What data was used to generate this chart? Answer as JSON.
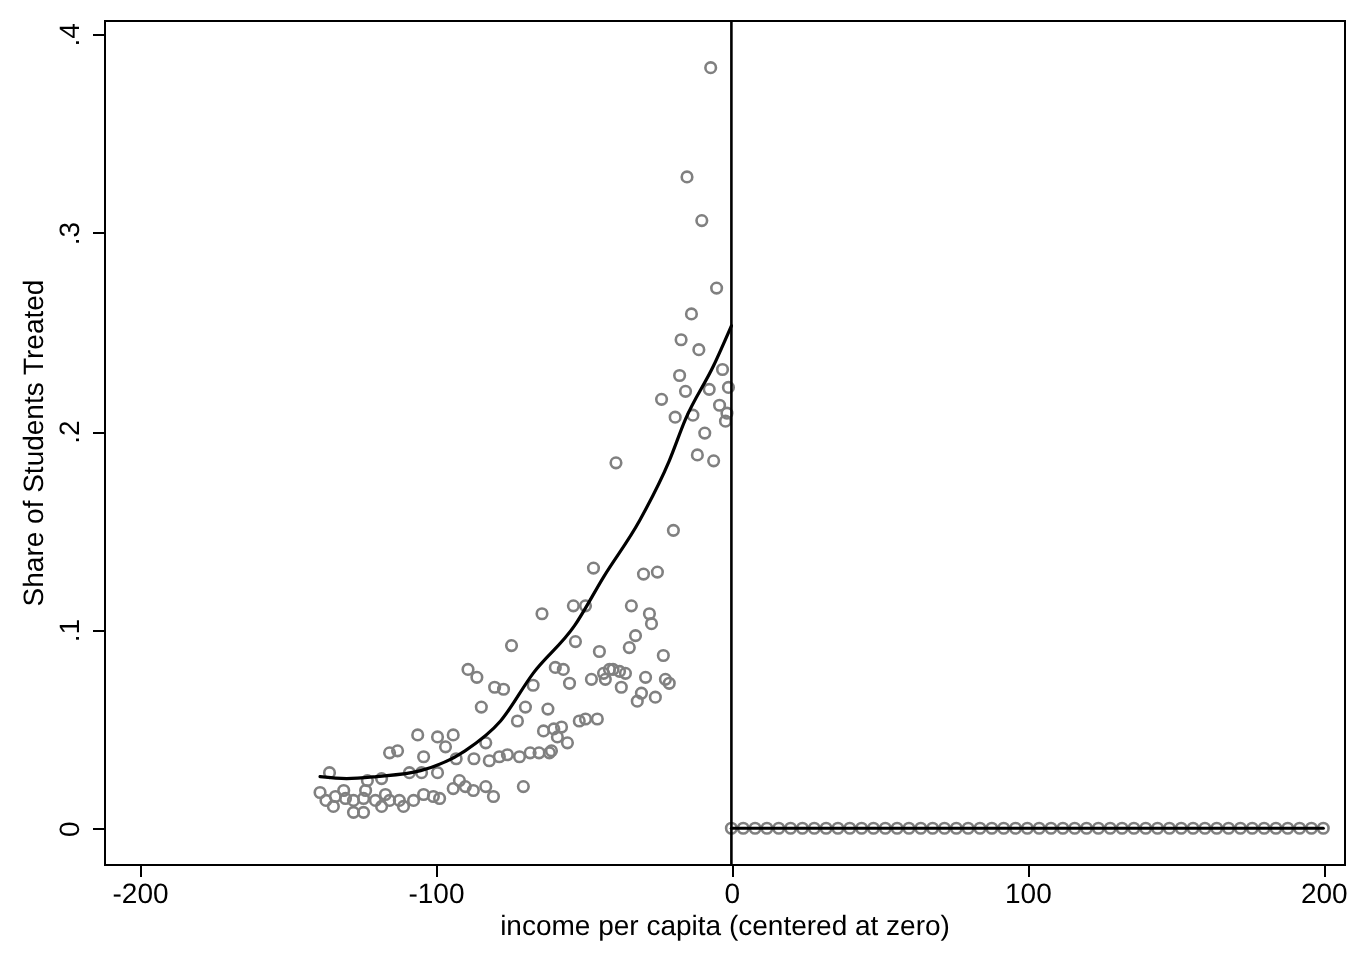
{
  "chart_data": {
    "type": "scatter",
    "xlabel": "income per capita (centered at zero)",
    "ylabel": "Share of Students Treated",
    "xlim": [
      -212,
      207
    ],
    "ylim": [
      -0.018,
      0.407
    ],
    "xticks": [
      -200,
      -100,
      0,
      100,
      200
    ],
    "yticks": [
      {
        "value": 0,
        "label": "0"
      },
      {
        "value": 0.1,
        "label": ".1"
      },
      {
        "value": 0.2,
        "label": ".2"
      },
      {
        "value": 0.3,
        "label": ".3"
      },
      {
        "value": 0.4,
        "label": ".4"
      }
    ],
    "grid": false,
    "marker": "circle",
    "line_style": "solid",
    "ref_lines": [
      {
        "axis": "x",
        "value": 0,
        "color": "#000000"
      }
    ],
    "series": [
      {
        "color": "#808080",
        "x": [
          -7,
          -15,
          -10,
          -5,
          -13.5,
          -17,
          -11,
          -17.5,
          -3,
          -15.5,
          -7.5,
          -1,
          -23.6,
          -4,
          -19,
          -13,
          -1.5,
          -2,
          -9,
          -39,
          -11.5,
          -6,
          -19.6,
          -46.6,
          -29.7,
          -25,
          -53.4,
          -49.3,
          -33.8,
          -27.7,
          -27,
          -32.4,
          -34.5,
          -23,
          -52.7,
          -44.6,
          -64,
          -59.5,
          -56.8,
          -54.7,
          -47.3,
          -43.2,
          -41.2,
          -40,
          -37.8,
          -35.8,
          -42.6,
          -37.2,
          -29,
          -22.3,
          -21,
          -30.4,
          -31.8,
          -25.7,
          -62,
          -51.4,
          -49.3,
          -45.3,
          -63.5,
          -60,
          -57.4,
          -58.8,
          -55.4,
          -65,
          -61.5,
          -74.3,
          -89,
          -86,
          -80,
          -77,
          -67,
          -84.5,
          -69.6,
          -72.3,
          -106,
          -99.3,
          -94,
          -115.5,
          -112.8,
          -104,
          -96.6,
          -83,
          -93,
          -87,
          -81.8,
          -78.4,
          -75.7,
          -71.6,
          -68,
          -60.8,
          -135.8,
          -123,
          -118.2,
          -108.8,
          -104.7,
          -99.3,
          -91.9,
          -87.2,
          -80.4,
          -89.9,
          -83,
          -94,
          -70.3,
          -139,
          -137,
          -133.8,
          -130.4,
          -127.7,
          -124.3,
          -134.5,
          -127.7,
          -124.3,
          -120.3,
          -118.2,
          -115.5,
          -112.2,
          -110.8,
          -107.4,
          -104,
          -100.7,
          -98.6,
          -116.9,
          -131,
          -123.6
        ],
        "values": [
          0.383,
          0.328,
          0.306,
          0.272,
          0.259,
          0.246,
          0.241,
          0.228,
          0.231,
          0.22,
          0.221,
          0.222,
          0.216,
          0.213,
          0.207,
          0.208,
          0.209,
          0.205,
          0.199,
          0.184,
          0.188,
          0.185,
          0.15,
          0.131,
          0.128,
          0.129,
          0.112,
          0.112,
          0.112,
          0.108,
          0.103,
          0.097,
          0.091,
          0.087,
          0.094,
          0.089,
          0.108,
          0.081,
          0.08,
          0.073,
          0.075,
          0.078,
          0.08,
          0.08,
          0.079,
          0.078,
          0.075,
          0.071,
          0.076,
          0.075,
          0.073,
          0.068,
          0.064,
          0.066,
          0.06,
          0.054,
          0.055,
          0.055,
          0.049,
          0.05,
          0.051,
          0.046,
          0.043,
          0.038,
          0.038,
          0.092,
          0.08,
          0.076,
          0.071,
          0.07,
          0.072,
          0.061,
          0.061,
          0.054,
          0.047,
          0.046,
          0.047,
          0.038,
          0.039,
          0.036,
          0.041,
          0.043,
          0.035,
          0.035,
          0.034,
          0.036,
          0.037,
          0.036,
          0.038,
          0.039,
          0.028,
          0.024,
          0.025,
          0.028,
          0.028,
          0.028,
          0.024,
          0.019,
          0.016,
          0.021,
          0.021,
          0.02,
          0.021,
          0.018,
          0.014,
          0.016,
          0.015,
          0.014,
          0.015,
          0.011,
          0.008,
          0.008,
          0.014,
          0.011,
          0.014,
          0.014,
          0.011,
          0.014,
          0.017,
          0.016,
          0.015,
          0.017,
          0.019,
          0.019
        ]
      },
      {
        "color": "#808080",
        "x": [
          0,
          4,
          8,
          12,
          16,
          20,
          24,
          28,
          32,
          36,
          40,
          44,
          48,
          52,
          56,
          60,
          64,
          68,
          72,
          76,
          80,
          84,
          88,
          92,
          96,
          100,
          104,
          108,
          112,
          116,
          120,
          124,
          128,
          132,
          136,
          140,
          144,
          148,
          152,
          156,
          160,
          164,
          168,
          172,
          176,
          180,
          184,
          188,
          192,
          196,
          200
        ],
        "values": [
          0,
          0,
          0,
          0,
          0,
          0,
          0,
          0,
          0,
          0,
          0,
          0,
          0,
          0,
          0,
          0,
          0,
          0,
          0,
          0,
          0,
          0,
          0,
          0,
          0,
          0,
          0,
          0,
          0,
          0,
          0,
          0,
          0,
          0,
          0,
          0,
          0,
          0,
          0,
          0,
          0,
          0,
          0,
          0,
          0,
          0,
          0,
          0,
          0,
          0,
          0
        ]
      },
      {
        "type": "line",
        "marker": "none",
        "color": "#000000",
        "x": [
          -139,
          -130,
          -120,
          -105,
          -90,
          -78,
          -67,
          -53,
          -43,
          -31,
          -21,
          -15.5,
          -6,
          0
        ],
        "values": [
          0.026,
          0.025,
          0.026,
          0.029,
          0.039,
          0.054,
          0.078,
          0.102,
          0.127,
          0.155,
          0.185,
          0.206,
          0.233,
          0.253
        ]
      },
      {
        "type": "line",
        "marker": "none",
        "color": "#000000",
        "x": [
          0,
          200
        ],
        "values": [
          0,
          0
        ]
      }
    ]
  }
}
